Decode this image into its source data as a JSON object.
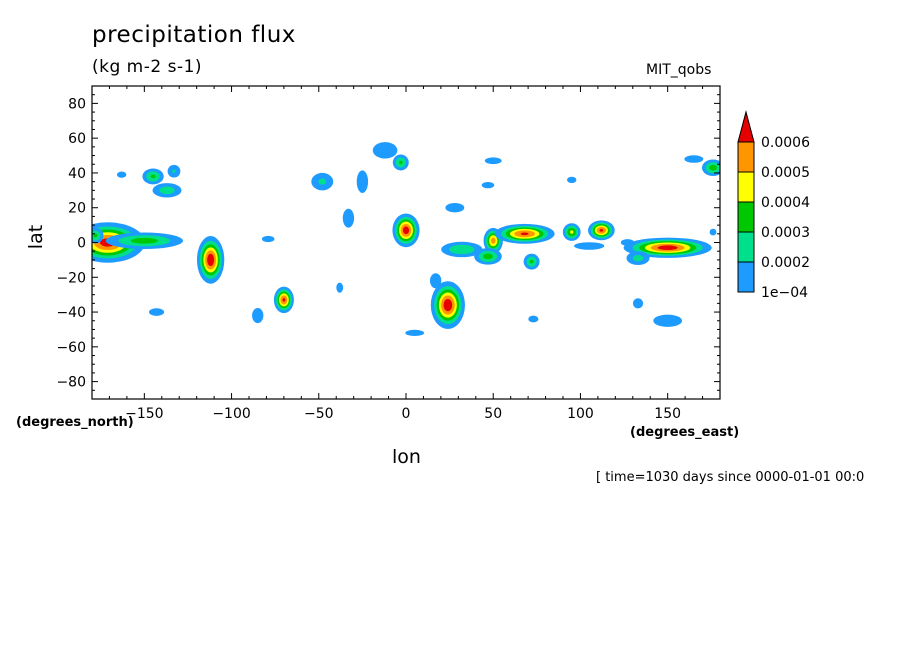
{
  "chart_data": {
    "type": "heatmap",
    "title": "precipitation flux",
    "subtitle": "(kg m-2 s-1)",
    "dataset": "MIT_qobs",
    "xlabel": "lon",
    "ylabel": "lat",
    "x_units": "(degrees_east)",
    "y_units": "(degrees_north)",
    "xlim": [
      -180,
      180
    ],
    "ylim": [
      -90,
      90
    ],
    "x_ticks": [
      -150,
      -100,
      -50,
      0,
      50,
      100,
      150
    ],
    "y_ticks": [
      80,
      60,
      40,
      20,
      0,
      -20,
      -40,
      -60,
      -80
    ],
    "levels": [
      "1e-04",
      "0.0002",
      "0.0003",
      "0.0004",
      "0.0005",
      "0.0006"
    ],
    "level_values": [
      0.0001,
      0.0002,
      0.0003,
      0.0004,
      0.0005,
      0.0006
    ],
    "level_colors": [
      "#1e9bff",
      "#00e08c",
      "#00c800",
      "#ffff00",
      "#ff9600",
      "#e60000"
    ],
    "features": [
      {
        "lon": -171,
        "lat": 0,
        "sx": 11,
        "sy": 6,
        "peak": 0.00065
      },
      {
        "lon": -150,
        "lat": 1,
        "sx": 14,
        "sy": 3,
        "peak": 0.00035
      },
      {
        "lon": -145,
        "lat": 38,
        "sx": 4,
        "sy": 3,
        "peak": 0.00032
      },
      {
        "lon": -137,
        "lat": 30,
        "sx": 6,
        "sy": 3,
        "peak": 0.00026
      },
      {
        "lon": -133,
        "lat": 41,
        "sx": 3,
        "sy": 3,
        "peak": 0.00021
      },
      {
        "lon": -112,
        "lat": -10,
        "sx": 4,
        "sy": 7,
        "peak": 0.00068
      },
      {
        "lon": -70,
        "lat": -33,
        "sx": 3,
        "sy": 4,
        "peak": 0.00062
      },
      {
        "lon": -85,
        "lat": -42,
        "sx": 3,
        "sy": 4,
        "peak": 0.00018
      },
      {
        "lon": -143,
        "lat": -40,
        "sx": 4,
        "sy": 2,
        "peak": 0.00018
      },
      {
        "lon": -79,
        "lat": 2,
        "sx": 4,
        "sy": 2,
        "peak": 0.00015
      },
      {
        "lon": -48,
        "lat": 35,
        "sx": 5,
        "sy": 4,
        "peak": 0.00022
      },
      {
        "lon": -25,
        "lat": 35,
        "sx": 3,
        "sy": 6,
        "peak": 0.00018
      },
      {
        "lon": -33,
        "lat": 14,
        "sx": 3,
        "sy": 5,
        "peak": 0.00018
      },
      {
        "lon": -38,
        "lat": -26,
        "sx": 2,
        "sy": 3,
        "peak": 0.00016
      },
      {
        "lon": -12,
        "lat": 53,
        "sx": 6,
        "sy": 4,
        "peak": 0.0002
      },
      {
        "lon": -3,
        "lat": 46,
        "sx": 3,
        "sy": 3,
        "peak": 0.00032
      },
      {
        "lon": 0,
        "lat": 7,
        "sx": 4,
        "sy": 5,
        "peak": 0.00066
      },
      {
        "lon": 5,
        "lat": -52,
        "sx": 6,
        "sy": 2,
        "peak": 0.00015
      },
      {
        "lon": 24,
        "lat": -36,
        "sx": 5,
        "sy": 7,
        "peak": 0.00068
      },
      {
        "lon": 17,
        "lat": -22,
        "sx": 3,
        "sy": 4,
        "peak": 0.00018
      },
      {
        "lon": 32,
        "lat": -4,
        "sx": 8,
        "sy": 3,
        "peak": 0.0003
      },
      {
        "lon": 50,
        "lat": 1,
        "sx": 3,
        "sy": 4,
        "peak": 0.00055
      },
      {
        "lon": 47,
        "lat": -8,
        "sx": 5,
        "sy": 3,
        "peak": 0.00035
      },
      {
        "lon": 68,
        "lat": 5,
        "sx": 9,
        "sy": 3,
        "peak": 0.00062
      },
      {
        "lon": 72,
        "lat": -11,
        "sx": 3,
        "sy": 3,
        "peak": 0.00032
      },
      {
        "lon": 95,
        "lat": 6,
        "sx": 3,
        "sy": 3,
        "peak": 0.00042
      },
      {
        "lon": 112,
        "lat": 7,
        "sx": 4,
        "sy": 3,
        "peak": 0.00062
      },
      {
        "lon": 105,
        "lat": -2,
        "sx": 8,
        "sy": 2,
        "peak": 0.00018
      },
      {
        "lon": 150,
        "lat": -3,
        "sx": 13,
        "sy": 3,
        "peak": 0.00066
      },
      {
        "lon": 133,
        "lat": -9,
        "sx": 5,
        "sy": 3,
        "peak": 0.00024
      },
      {
        "lon": 176,
        "lat": 43,
        "sx": 4,
        "sy": 3,
        "peak": 0.00035
      },
      {
        "lon": 165,
        "lat": 48,
        "sx": 5,
        "sy": 2,
        "peak": 0.00018
      },
      {
        "lon": 50,
        "lat": 47,
        "sx": 5,
        "sy": 2,
        "peak": 0.00016
      },
      {
        "lon": 47,
        "lat": 33,
        "sx": 4,
        "sy": 2,
        "peak": 0.00015
      },
      {
        "lon": 28,
        "lat": 20,
        "sx": 6,
        "sy": 3,
        "peak": 0.00015
      },
      {
        "lon": 150,
        "lat": -45,
        "sx": 7,
        "sy": 3,
        "peak": 0.0002
      },
      {
        "lon": 133,
        "lat": -35,
        "sx": 3,
        "sy": 3,
        "peak": 0.00016
      },
      {
        "lon": 73,
        "lat": -44,
        "sx": 3,
        "sy": 2,
        "peak": 0.00016
      },
      {
        "lon": 127,
        "lat": 0,
        "sx": 4,
        "sy": 2,
        "peak": 0.00016
      },
      {
        "lon": -163,
        "lat": 39,
        "sx": 3,
        "sy": 2,
        "peak": 0.00015
      },
      {
        "lon": 95,
        "lat": 36,
        "sx": 3,
        "sy": 2,
        "peak": 0.00015
      },
      {
        "lon": -178,
        "lat": 4,
        "sx": 3,
        "sy": 3,
        "peak": 0.00032
      },
      {
        "lon": 176,
        "lat": 6,
        "sx": 2,
        "sy": 2,
        "peak": 0.00016
      }
    ]
  },
  "footer": {
    "timestamp": "[ time=1030 days since 0000-01-01 00:0"
  }
}
